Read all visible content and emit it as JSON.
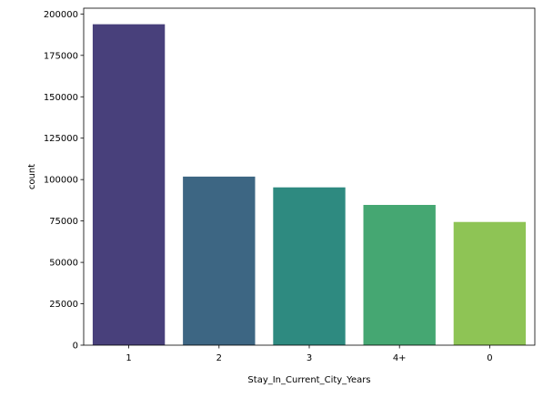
{
  "chart_data": {
    "type": "bar",
    "title": "",
    "xlabel": "Stay_In_Current_City_Years",
    "ylabel": "count",
    "categories": [
      "1",
      "2",
      "3",
      "4+",
      "0"
    ],
    "values": [
      193800,
      101800,
      95300,
      84700,
      74400
    ],
    "ylim": [
      0,
      203490
    ],
    "yticks": [
      0,
      25000,
      50000,
      75000,
      100000,
      125000,
      150000,
      175000,
      200000
    ],
    "bar_colors": [
      "#48407b",
      "#3d6683",
      "#2e8a80",
      "#45a772",
      "#8ec455"
    ],
    "grid": false,
    "legend": "none"
  }
}
